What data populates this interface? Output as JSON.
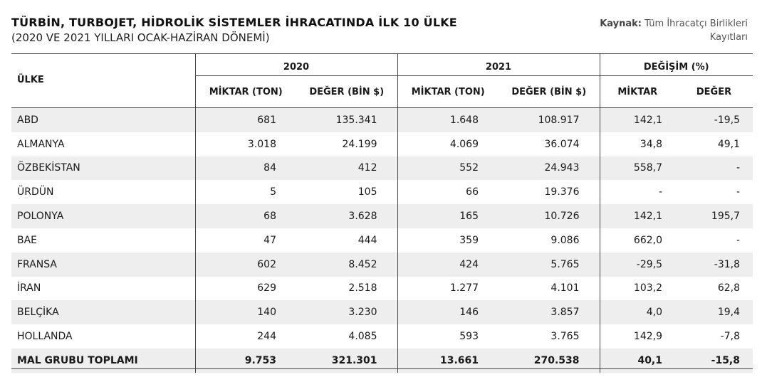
{
  "title": "TÜRBİN, TURBOJET, HİDROLİK SİSTEMLER İHRACATINDA İLK 10 ÜLKE",
  "subtitle": "(2020 VE 2021 YILLARI OCAK-HAZİRAN DÖNEMİ)",
  "source": {
    "label": "Kaynak:",
    "text": "Tüm İhracatçı Birlikleri Kayıtları"
  },
  "headers": {
    "country": "ÜLKE",
    "year_2020": "2020",
    "year_2021": "2021",
    "change": "DEĞİŞİM (%)",
    "miktar_ton": "MİKTAR (TON)",
    "deger_bin": "DEĞER (BİN $)",
    "miktar": "MİKTAR",
    "deger": "DEĞER"
  },
  "rows": [
    {
      "country": "ABD",
      "m2020": "681",
      "d2020": "135.341",
      "m2021": "1.648",
      "d2021": "108.917",
      "cm": "142,1",
      "cd": "-19,5"
    },
    {
      "country": "ALMANYA",
      "m2020": "3.018",
      "d2020": "24.199",
      "m2021": "4.069",
      "d2021": "36.074",
      "cm": "34,8",
      "cd": "49,1"
    },
    {
      "country": "ÖZBEKİSTAN",
      "m2020": "84",
      "d2020": "412",
      "m2021": "552",
      "d2021": "24.943",
      "cm": "558,7",
      "cd": "-"
    },
    {
      "country": "ÜRDÜN",
      "m2020": "5",
      "d2020": "105",
      "m2021": "66",
      "d2021": "19.376",
      "cm": "-",
      "cd": "-"
    },
    {
      "country": "POLONYA",
      "m2020": "68",
      "d2020": "3.628",
      "m2021": "165",
      "d2021": "10.726",
      "cm": "142,1",
      "cd": "195,7"
    },
    {
      "country": "BAE",
      "m2020": "47",
      "d2020": "444",
      "m2021": "359",
      "d2021": "9.086",
      "cm": "662,0",
      "cd": "-"
    },
    {
      "country": "FRANSA",
      "m2020": "602",
      "d2020": "8.452",
      "m2021": "424",
      "d2021": "5.765",
      "cm": "-29,5",
      "cd": "-31,8"
    },
    {
      "country": "İRAN",
      "m2020": "629",
      "d2020": "2.518",
      "m2021": "1.277",
      "d2021": "4.101",
      "cm": "103,2",
      "cd": "62,8"
    },
    {
      "country": "BELÇİKA",
      "m2020": "140",
      "d2020": "3.230",
      "m2021": "146",
      "d2021": "3.857",
      "cm": "4,0",
      "cd": "19,4"
    },
    {
      "country": "HOLLANDA",
      "m2020": "244",
      "d2020": "4.085",
      "m2021": "593",
      "d2021": "3.765",
      "cm": "142,9",
      "cd": "-7,8"
    }
  ],
  "total": {
    "country": "MAL GRUBU TOPLAMI",
    "m2020": "9.753",
    "d2020": "321.301",
    "m2021": "13.661",
    "d2021": "270.538",
    "cm": "40,1",
    "cd": "-15,8"
  }
}
